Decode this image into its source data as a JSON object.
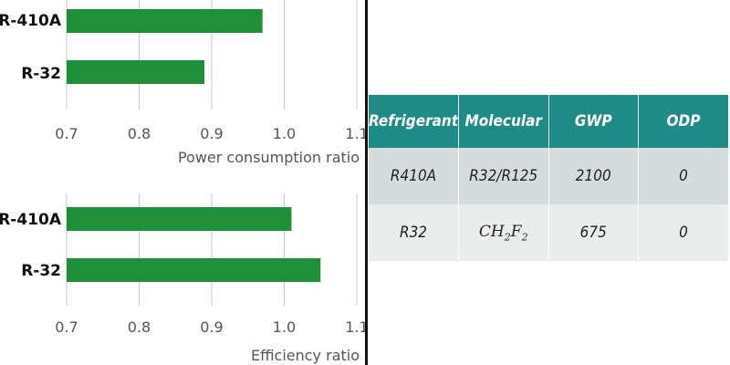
{
  "chart_data": [
    {
      "type": "bar",
      "orientation": "horizontal",
      "categories": [
        "R-410A",
        "R-32"
      ],
      "values": [
        0.97,
        0.89
      ],
      "xlabel": "Power consumption ratio",
      "xlim": [
        0.7,
        1.1
      ],
      "xticks": [
        "0.7",
        "0.8",
        "0.9",
        "1.0",
        "1.1"
      ],
      "grid": true,
      "bar_color": "#1f8f3a"
    },
    {
      "type": "bar",
      "orientation": "horizontal",
      "categories": [
        "R-410A",
        "R-32"
      ],
      "values": [
        1.01,
        1.05
      ],
      "xlabel": "Efficiency ratio",
      "xlim": [
        0.7,
        1.1
      ],
      "xticks": [
        "0.7",
        "0.8",
        "0.9",
        "1.0",
        "1.1"
      ],
      "grid": true,
      "bar_color": "#1f8f3a"
    }
  ],
  "table": {
    "headers": [
      "Refrigerant",
      "Molecular",
      "GWP",
      "ODP"
    ],
    "rows": [
      {
        "refrigerant": "R410A",
        "molecular": "R32/R125",
        "gwp": "2100",
        "odp": "0"
      },
      {
        "refrigerant": "R32",
        "molecular": "",
        "gwp": "675",
        "odp": "0"
      }
    ],
    "formula": {
      "c": "CH",
      "h_sub": "2",
      "f": "F",
      "f_sub": "2"
    },
    "header_color": "#1e8b87"
  }
}
